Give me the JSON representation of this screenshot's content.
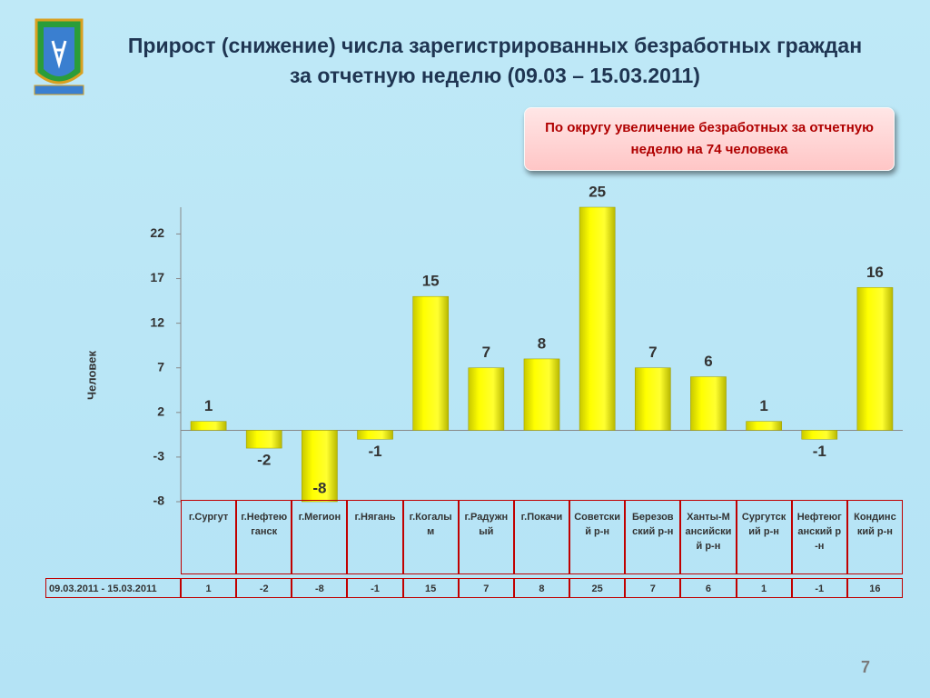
{
  "chart_data": {
    "type": "bar",
    "title": "Прирост (снижение) числа зарегистрированных безработных граждан за отчетную неделю (09.03 – 15.03.2011)",
    "annotation": "По округу увеличение безработных за отчетную неделю на 74 человека",
    "ylabel": "Человек",
    "categories": [
      "г.Сургут",
      "г.Нефтеюганск",
      "г.Мегион",
      "г.Нягань",
      "г.Когалым",
      "г.Радужный",
      "г.Покачи",
      "Советский р-н",
      "Березовский р-н",
      "Ханты-Мансийский р-н",
      "Сургутский р-н",
      "Нефтеюганский р-н",
      "Кондинский р-н"
    ],
    "series": [
      {
        "name": "09.03.2011 - 15.03.2011",
        "color": "#ffff00",
        "values": [
          1,
          -2,
          -8,
          -1,
          15,
          7,
          8,
          25,
          7,
          6,
          1,
          -1,
          16
        ]
      }
    ],
    "ylim": [
      -8,
      25
    ],
    "yticks": [
      -8,
      -3,
      2,
      7,
      12,
      17,
      22
    ],
    "grid": false,
    "page_number": "7"
  }
}
